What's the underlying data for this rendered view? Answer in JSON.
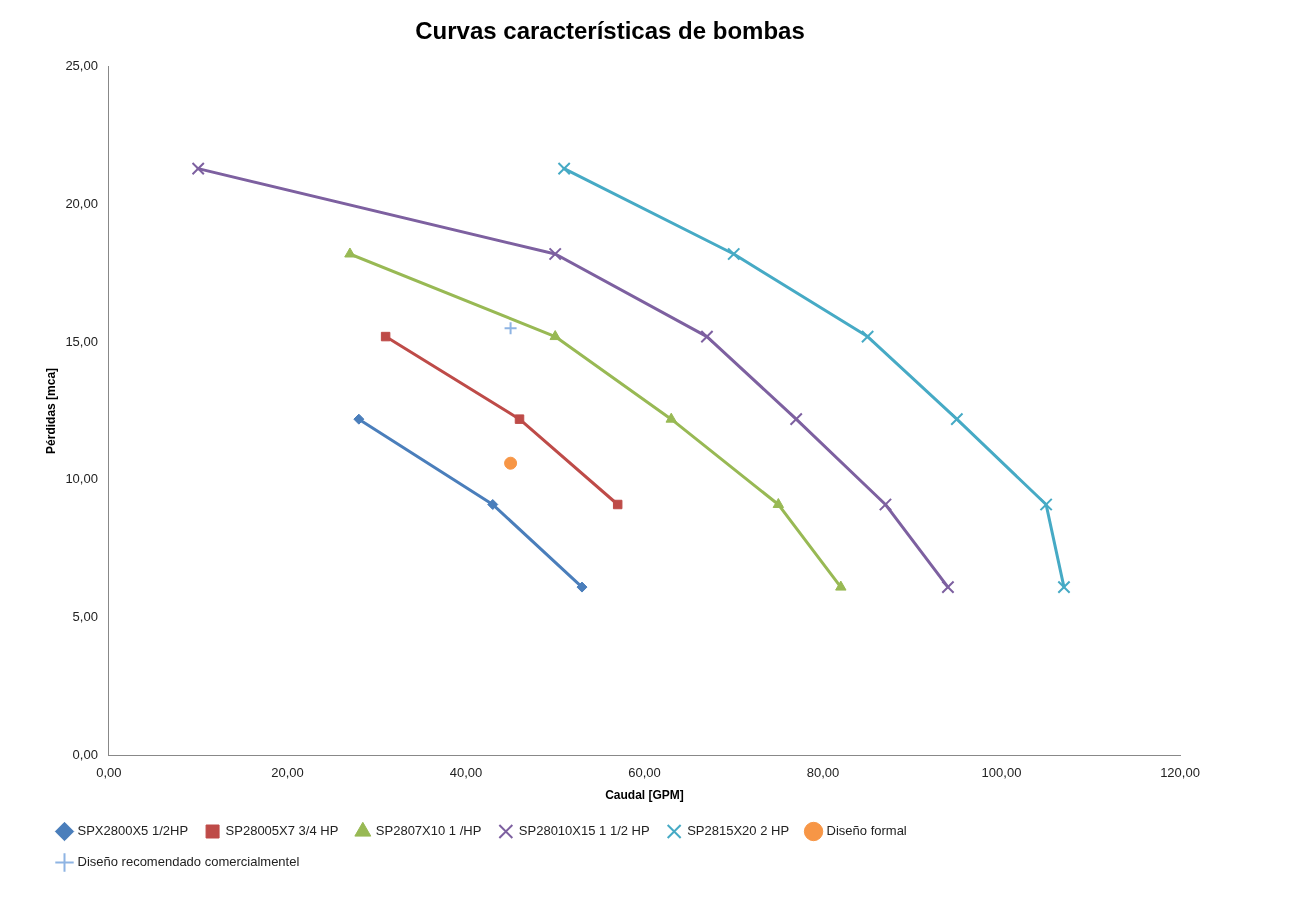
{
  "chart_data": {
    "type": "line",
    "title": "Curvas características de bombas",
    "xlabel": "Caudal [GPM]",
    "ylabel": "Pérdidas [mca]",
    "xlim": [
      0,
      120
    ],
    "xticks": [
      {
        "value": 0,
        "label": "0,00"
      },
      {
        "value": 20,
        "label": "20,00"
      },
      {
        "value": 40,
        "label": "40,00"
      },
      {
        "value": 60,
        "label": "60,00"
      },
      {
        "value": 80,
        "label": "80,00"
      },
      {
        "value": 100,
        "label": "100,00"
      },
      {
        "value": 120,
        "label": "120,00"
      }
    ],
    "ylim": [
      0,
      25
    ],
    "yticks": [
      {
        "value": 0,
        "label": "0,00"
      },
      {
        "value": 5,
        "label": "5,00"
      },
      {
        "value": 10,
        "label": "10,00"
      },
      {
        "value": 15,
        "label": "15,00"
      },
      {
        "value": 20,
        "label": "20,00"
      },
      {
        "value": 25,
        "label": "25,00"
      }
    ],
    "grid": false,
    "legend": "bottom",
    "series": [
      {
        "name": "SPX2800X5 1/2HP",
        "color": "#4a7ebb",
        "marker": "diamond",
        "x": [
          28,
          43,
          53
        ],
        "values": [
          12.2,
          9.1,
          6.1
        ]
      },
      {
        "name": "SP28005X7 3/4 HP",
        "color": "#be4b48",
        "marker": "square",
        "x": [
          31,
          46,
          57
        ],
        "values": [
          15.2,
          12.2,
          9.1
        ]
      },
      {
        "name": "SP2807X10 1 /HP",
        "color": "#98b954",
        "marker": "triangle",
        "x": [
          27,
          50,
          63,
          75,
          82
        ],
        "values": [
          18.2,
          15.2,
          12.2,
          9.1,
          6.1
        ]
      },
      {
        "name": "SP28010X15 1 1/2 HP",
        "color": "#7d60a0",
        "marker": "cross",
        "x": [
          10,
          50,
          67,
          77,
          87,
          94
        ],
        "values": [
          21.3,
          18.2,
          15.2,
          12.2,
          9.1,
          6.1
        ]
      },
      {
        "name": "SP2815X20 2 HP",
        "color": "#46aac5",
        "marker": "cross",
        "x": [
          51,
          70,
          85,
          95,
          105,
          107
        ],
        "values": [
          21.3,
          18.2,
          15.2,
          12.2,
          9.1,
          6.1
        ]
      },
      {
        "name": "Diseño formal",
        "type": "scatter",
        "color": "#f79646",
        "marker": "circle",
        "x": [
          45
        ],
        "values": [
          10.6
        ]
      },
      {
        "name": "Diseño recomendado comercialmentel",
        "type": "scatter",
        "color": "#8eb4e3",
        "marker": "plus",
        "x": [
          45
        ],
        "values": [
          15.5
        ]
      }
    ]
  }
}
